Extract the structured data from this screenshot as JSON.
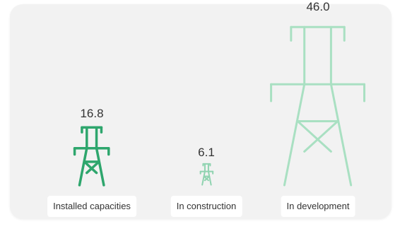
{
  "chart_data": {
    "type": "bar",
    "categories": [
      "Installed capacities",
      "In construction",
      "In development"
    ],
    "values": [
      16.8,
      6.1,
      46.0
    ],
    "value_labels": [
      "16.8",
      "6.1",
      "46.0"
    ],
    "title": "",
    "xlabel": "",
    "ylabel": "",
    "ylim": [
      0,
      46.0
    ],
    "colors": [
      "#2ea66d",
      "#8fd3b0",
      "#a9e0c2"
    ],
    "mark": "pylon-icon",
    "grid": false,
    "legend": "none"
  }
}
